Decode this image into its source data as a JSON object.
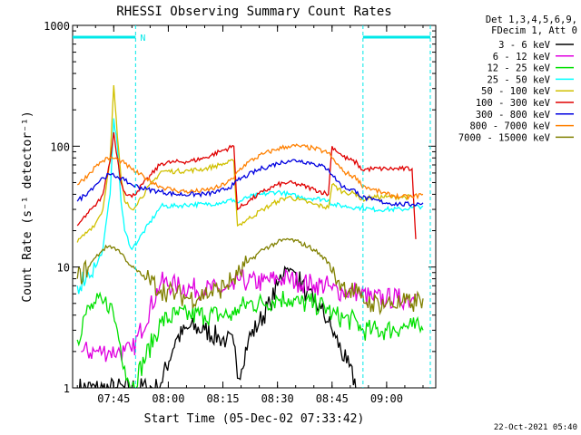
{
  "chart_data": {
    "type": "line",
    "title": "RHESSI Observing Summary Count Rates",
    "xlabel": "Start Time (05-Dec-02 07:33:42)",
    "ylabel": "Count Rate (s⁻¹ detector⁻¹)",
    "y_scale": "log",
    "xlim": [
      "07:33:42",
      "09:13:30"
    ],
    "ylim": [
      1,
      1000
    ],
    "x_ticks": [
      "07:45",
      "08:00",
      "08:15",
      "08:30",
      "08:45",
      "09:00"
    ],
    "y_ticks": [
      "1",
      "10",
      "100",
      "1000"
    ],
    "legend_header": [
      "Det 1,3,4,5,6,9,",
      "FDecim 1, Att 0"
    ],
    "legend_position": "top-right",
    "timestamp": "22-Oct-2021 05:40",
    "annotations": {
      "night_label": "N",
      "night_intervals": [
        [
          "07:33:42",
          "07:51:00"
        ],
        [
          "08:53:30",
          "09:12:00"
        ]
      ],
      "vertical_markers": [
        "07:51:00",
        "08:53:30",
        "09:12:00"
      ],
      "data_gaps": [
        [
          "07:51:00",
          "07:58:00"
        ],
        [
          "08:19:00",
          "08:21:00"
        ],
        [
          "08:46:30",
          "08:47:30"
        ]
      ]
    },
    "series": [
      {
        "name": "3 - 6 keV",
        "color": "#000000",
        "x": [
          "07:35",
          "07:40",
          "07:42",
          "07:44",
          "07:46",
          "07:48",
          "07:50",
          "07:54",
          "07:57",
          "07:58",
          "08:02",
          "08:06",
          "08:10",
          "08:14",
          "08:16",
          "08:18",
          "08:19",
          "08:22",
          "08:25",
          "08:28",
          "08:30",
          "08:32",
          "08:35",
          "08:38",
          "08:40",
          "08:42",
          "08:44",
          "08:45",
          "08:46",
          "08:49",
          "08:52"
        ],
        "y": [
          1,
          1,
          1,
          1,
          1,
          1,
          1,
          1,
          1,
          1.1,
          2.5,
          3.2,
          3.0,
          2.6,
          2.5,
          2.3,
          1.2,
          2.5,
          3.5,
          5,
          7,
          10,
          9,
          6,
          5,
          4.5,
          3.5,
          3,
          2.6,
          1.6,
          1
        ]
      },
      {
        "name": "6 - 12 keV",
        "color": "#e000e0",
        "x": [
          "07:36",
          "07:40",
          "07:42",
          "07:44",
          "07:46",
          "07:48",
          "07:50",
          "07:58",
          "08:02",
          "08:06",
          "08:10",
          "08:14",
          "08:18",
          "08:19",
          "08:22",
          "08:26",
          "08:30",
          "08:33",
          "08:36",
          "08:40",
          "08:44",
          "08:45",
          "08:48",
          "08:52",
          "08:53",
          "08:56",
          "09:00",
          "09:03",
          "09:05",
          "09:07",
          "09:08"
        ],
        "y": [
          2,
          2,
          2,
          2,
          2,
          2,
          2,
          7.5,
          7,
          6.7,
          6.5,
          6.5,
          6.5,
          8,
          7.5,
          7.5,
          8,
          8,
          7.5,
          7.2,
          7,
          6.5,
          6.3,
          6.3,
          6,
          5.5,
          5.5,
          5.5,
          5.5,
          5.5,
          6
        ]
      },
      {
        "name": "12 - 25 keV",
        "color": "#00e000",
        "x": [
          "07:35",
          "07:37",
          "07:40",
          "07:42",
          "07:44",
          "07:46",
          "07:48",
          "07:50",
          "07:58",
          "08:02",
          "08:06",
          "08:10",
          "08:14",
          "08:18",
          "08:19",
          "08:22",
          "08:26",
          "08:30",
          "08:33",
          "08:36",
          "08:40",
          "08:44",
          "08:45",
          "08:48",
          "08:52",
          "08:53",
          "08:56",
          "09:00",
          "09:04",
          "09:07",
          "09:10"
        ],
        "y": [
          2.5,
          4,
          5,
          5,
          5,
          3,
          1.5,
          1,
          3.5,
          4,
          4,
          4,
          4,
          4,
          4.5,
          5,
          5,
          5.5,
          5.5,
          5,
          5,
          4.5,
          4,
          3.8,
          3.5,
          3,
          3,
          3,
          3.2,
          3.2,
          3
        ]
      },
      {
        "name": "25 - 50 keV",
        "color": "#00ffff",
        "x": [
          "07:35",
          "07:38",
          "07:40",
          "07:42",
          "07:44",
          "07:45",
          "07:46",
          "07:47",
          "07:48",
          "07:50",
          "07:58",
          "08:02",
          "08:06",
          "08:10",
          "08:14",
          "08:18",
          "08:19",
          "08:22",
          "08:26",
          "08:30",
          "08:33",
          "08:36",
          "08:40",
          "08:44",
          "08:45",
          "08:48",
          "08:52",
          "08:53",
          "08:56",
          "09:00",
          "09:04",
          "09:07",
          "09:10"
        ],
        "y": [
          7,
          9,
          10,
          14,
          40,
          170,
          100,
          35,
          20,
          14,
          32,
          32,
          33,
          33,
          34,
          36,
          34,
          38,
          40,
          42,
          40,
          38,
          37,
          36,
          33,
          32,
          31,
          31,
          30,
          30,
          30,
          31,
          32
        ]
      },
      {
        "name": "50 - 100 keV",
        "color": "#d0c000",
        "x": [
          "07:35",
          "07:38",
          "07:40",
          "07:42",
          "07:44",
          "07:45",
          "07:46",
          "07:47",
          "07:48",
          "07:50",
          "07:58",
          "08:02",
          "08:06",
          "08:10",
          "08:14",
          "08:18",
          "08:19",
          "08:22",
          "08:26",
          "08:30",
          "08:33",
          "08:36",
          "08:40",
          "08:44",
          "08:45",
          "08:48",
          "08:52",
          "08:53",
          "08:56",
          "09:00",
          "09:04",
          "09:07"
        ],
        "y": [
          16,
          20,
          23,
          30,
          80,
          320,
          120,
          55,
          35,
          30,
          62,
          62,
          63,
          65,
          70,
          75,
          22,
          25,
          30,
          35,
          38,
          36,
          33,
          31,
          48,
          42,
          40,
          36,
          38,
          38,
          38,
          38
        ]
      },
      {
        "name": "100 - 300 keV",
        "color": "#e00000",
        "x": [
          "07:35",
          "07:38",
          "07:40",
          "07:42",
          "07:44",
          "07:45",
          "07:46",
          "07:47",
          "07:48",
          "07:50",
          "07:58",
          "08:02",
          "08:06",
          "08:10",
          "08:14",
          "08:18",
          "08:19",
          "08:22",
          "08:26",
          "08:30",
          "08:33",
          "08:36",
          "08:40",
          "08:44",
          "08:45",
          "08:48",
          "08:52",
          "08:53",
          "08:56",
          "09:00",
          "09:04",
          "09:07",
          "09:08"
        ],
        "y": [
          22,
          28,
          32,
          40,
          75,
          130,
          80,
          50,
          42,
          38,
          72,
          74,
          75,
          80,
          90,
          100,
          30,
          35,
          42,
          48,
          50,
          48,
          44,
          40,
          100,
          82,
          72,
          64,
          65,
          65,
          65,
          65,
          17
        ]
      },
      {
        "name": "300 - 800 keV",
        "color": "#0000e0",
        "x": [
          "07:35",
          "07:38",
          "07:40",
          "07:42",
          "07:44",
          "07:46",
          "07:48",
          "07:50",
          "07:54",
          "07:58",
          "08:02",
          "08:06",
          "08:10",
          "08:14",
          "08:18",
          "08:19",
          "08:22",
          "08:26",
          "08:30",
          "08:33",
          "08:36",
          "08:40",
          "08:44",
          "08:45",
          "08:48",
          "08:52",
          "08:53",
          "08:56",
          "09:00",
          "09:04",
          "09:07",
          "09:10"
        ],
        "y": [
          35,
          42,
          48,
          55,
          58,
          56,
          52,
          48,
          44,
          42,
          40,
          40,
          40,
          42,
          48,
          52,
          58,
          66,
          72,
          76,
          76,
          72,
          65,
          58,
          46,
          42,
          38,
          36,
          34,
          33,
          33,
          34
        ]
      },
      {
        "name": "800 - 7000 keV",
        "color": "#ff8000",
        "x": [
          "07:35",
          "07:38",
          "07:40",
          "07:42",
          "07:44",
          "07:46",
          "07:48",
          "07:50",
          "07:54",
          "07:58",
          "08:02",
          "08:06",
          "08:10",
          "08:14",
          "08:18",
          "08:19",
          "08:22",
          "08:26",
          "08:30",
          "08:33",
          "08:36",
          "08:40",
          "08:44",
          "08:45",
          "08:48",
          "08:52",
          "08:53",
          "08:56",
          "09:00",
          "09:04",
          "09:07",
          "09:10"
        ],
        "y": [
          48,
          58,
          68,
          76,
          80,
          78,
          72,
          64,
          54,
          46,
          43,
          42,
          43,
          46,
          54,
          62,
          74,
          86,
          95,
          100,
          100,
          96,
          88,
          80,
          62,
          54,
          48,
          44,
          40,
          38,
          38,
          40
        ]
      },
      {
        "name": "7000 - 15000 keV",
        "color": "#808000",
        "x": [
          "07:35",
          "07:38",
          "07:40",
          "07:42",
          "07:44",
          "07:46",
          "07:48",
          "07:50",
          "07:54",
          "07:58",
          "08:02",
          "08:06",
          "08:10",
          "08:14",
          "08:18",
          "08:19",
          "08:22",
          "08:26",
          "08:30",
          "08:33",
          "08:36",
          "08:40",
          "08:44",
          "08:45",
          "08:48",
          "08:52",
          "08:53",
          "08:56",
          "09:00",
          "09:04",
          "09:07",
          "09:10"
        ],
        "y": [
          8,
          10,
          12,
          14,
          15,
          14,
          12,
          10,
          8,
          6.5,
          6,
          5.5,
          6,
          6.5,
          8,
          8.5,
          11,
          14,
          16,
          17,
          16,
          14,
          11,
          9,
          7,
          6,
          5.5,
          5,
          5,
          5,
          5,
          5.5
        ]
      }
    ]
  }
}
